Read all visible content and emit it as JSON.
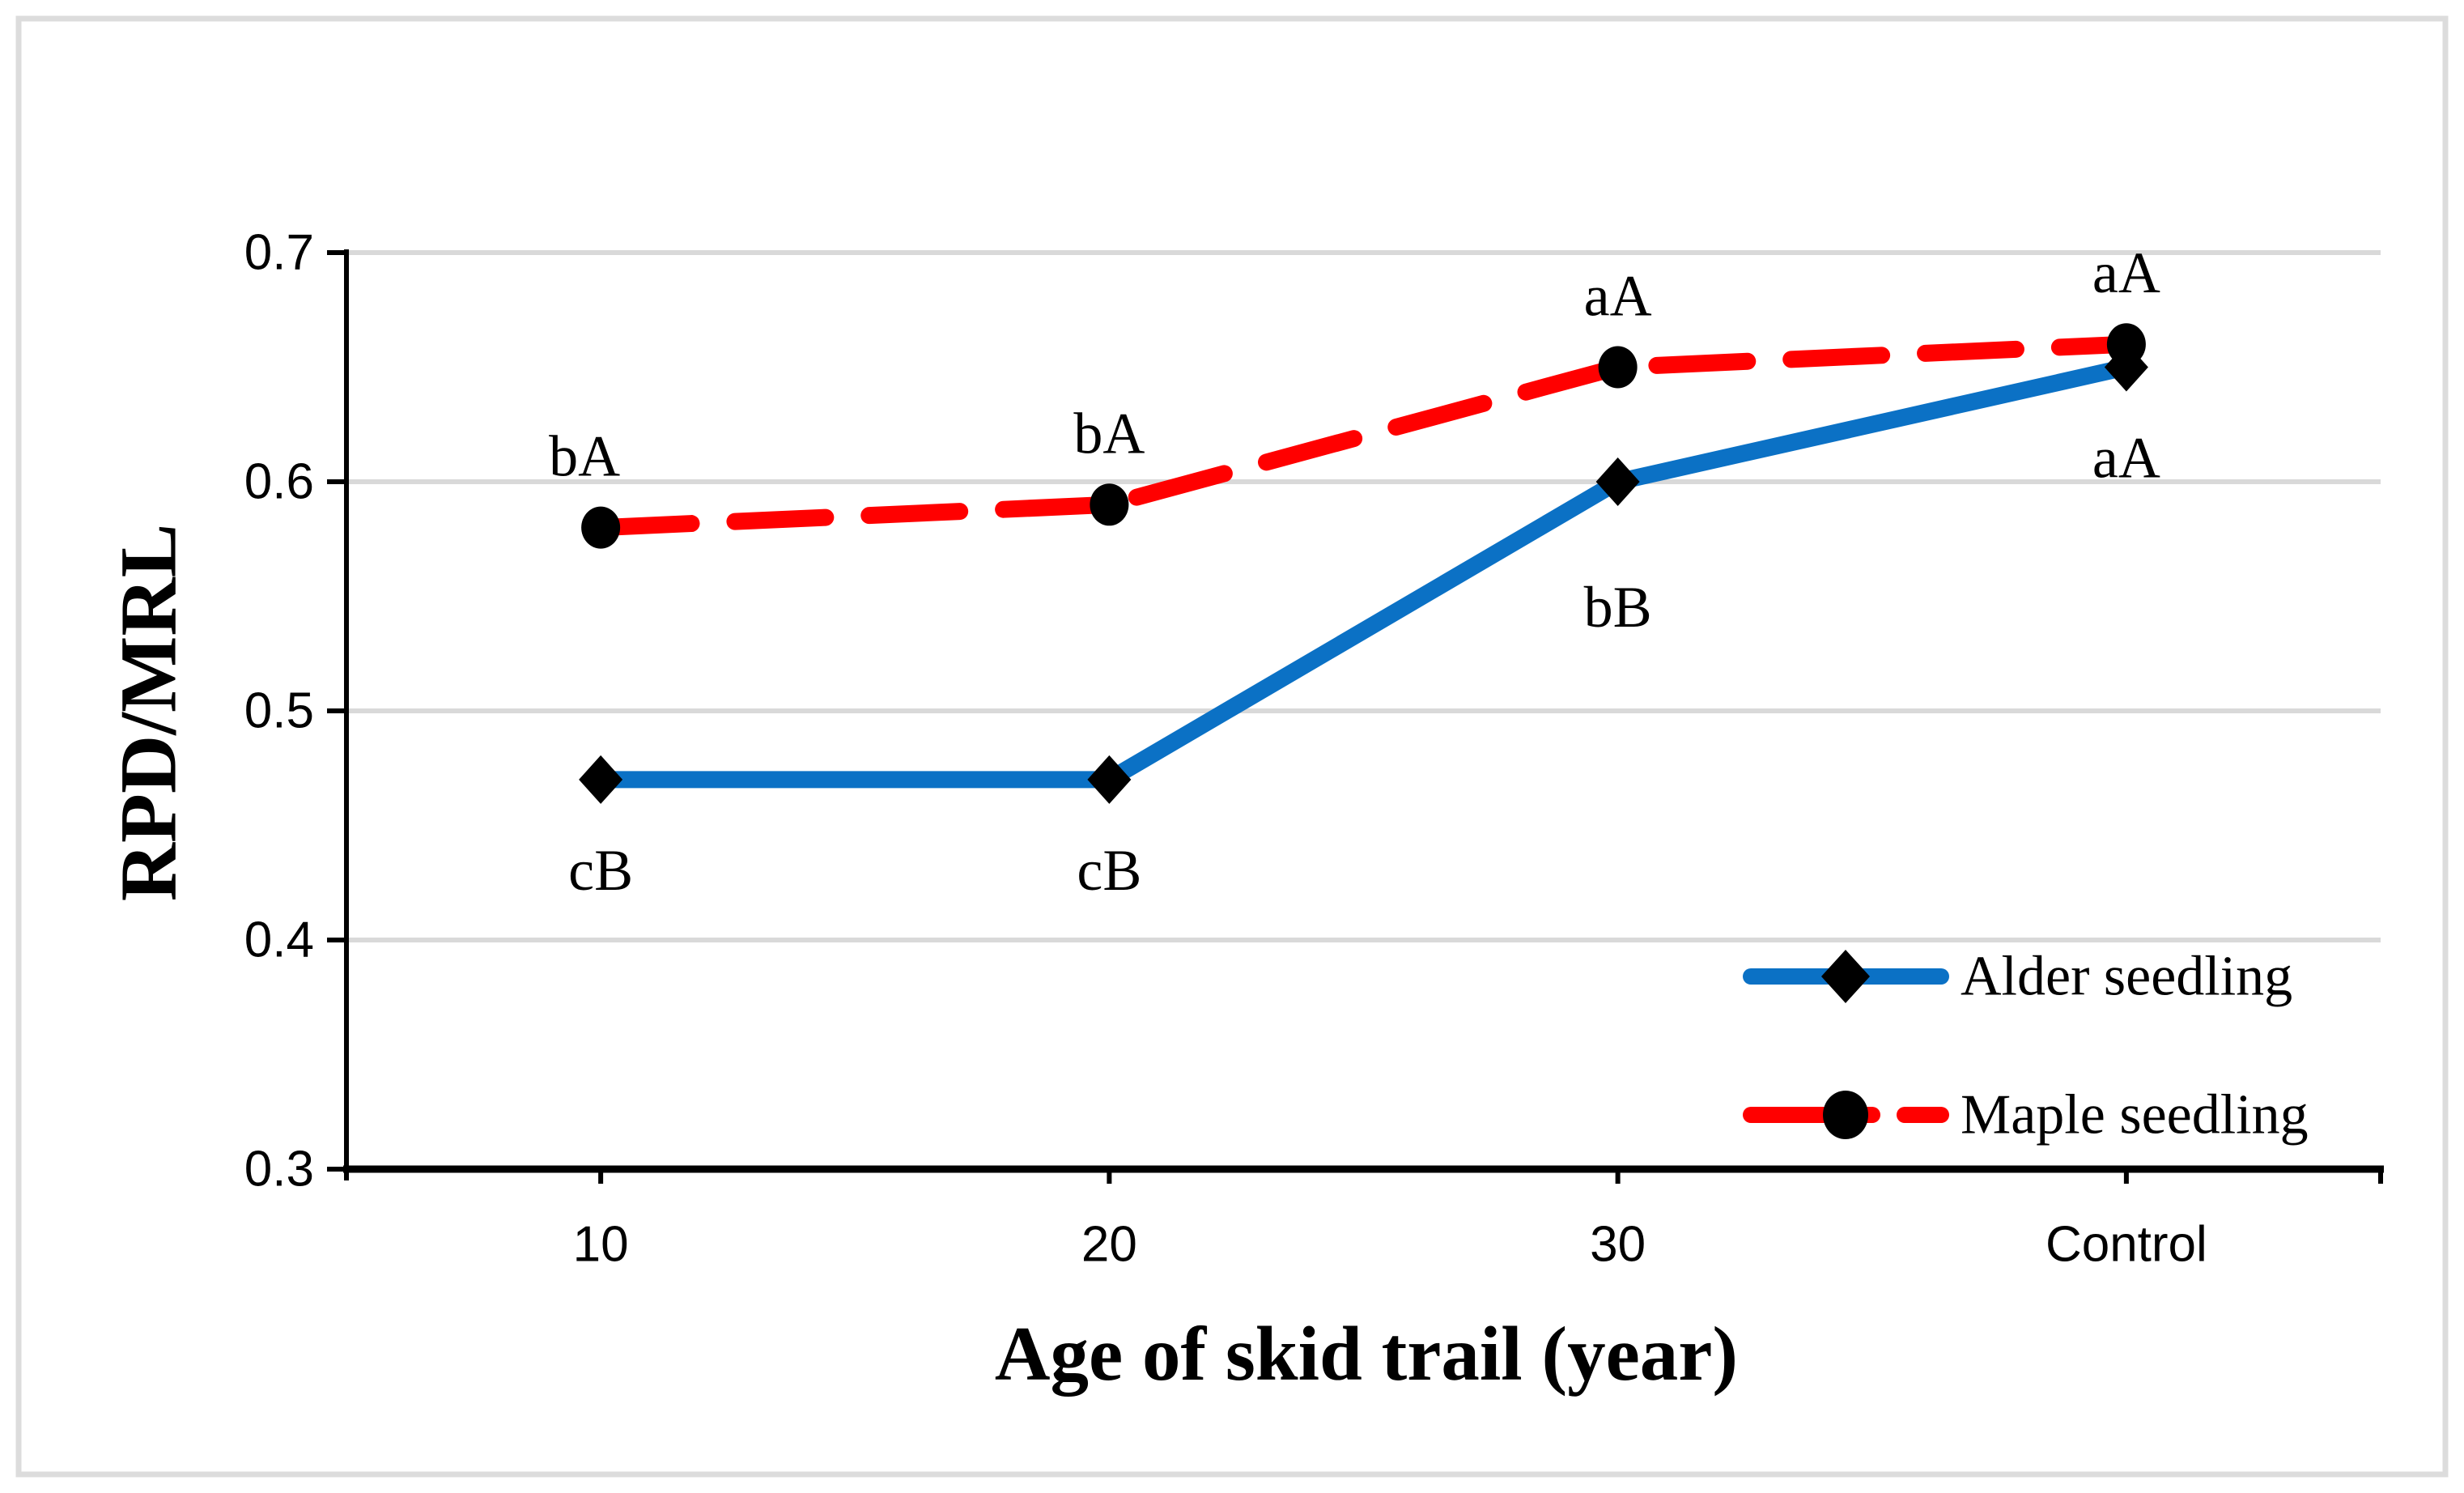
{
  "figure": {
    "background": "#FFFFFF",
    "border_color": "#DCDCDC"
  },
  "chart_data": {
    "type": "line",
    "title": "",
    "xlabel": "Age of skid trail (year)",
    "ylabel": "RPD/MRL",
    "categories": [
      "10",
      "20",
      "30",
      "Control"
    ],
    "y_axis": {
      "min": 0.3,
      "max": 0.7,
      "tick_step": 0.1,
      "tick_labels": [
        "0.3",
        "0.4",
        "0.5",
        "0.6",
        "0.7"
      ]
    },
    "grid": "horizontal-gridlines-at-0.4-0.5-0.6-0.7",
    "gridline_color": "#D9D9D9",
    "axis_color": "#000000",
    "series": [
      {
        "name": "Alder seedling",
        "color": "#0B71C5",
        "line_style": "solid",
        "marker": "diamond",
        "marker_color": "#000000",
        "values": [
          0.47,
          0.47,
          0.6,
          0.65
        ]
      },
      {
        "name": "Maple seedling",
        "color": "#FF0000",
        "line_style": "dashed",
        "marker": "circle",
        "marker_color": "#000000",
        "values": [
          0.58,
          0.59,
          0.65,
          0.66
        ]
      }
    ],
    "annotations": [
      {
        "series": "Maple seedling",
        "category": "10",
        "text": "bA",
        "placement": "above"
      },
      {
        "series": "Maple seedling",
        "category": "20",
        "text": "bA",
        "placement": "above"
      },
      {
        "series": "Maple seedling",
        "category": "30",
        "text": "aA",
        "placement": "above"
      },
      {
        "series": "Maple seedling",
        "category": "Control",
        "text": "aA",
        "placement": "above"
      },
      {
        "series": "Alder seedling",
        "category": "10",
        "text": "cB",
        "placement": "below"
      },
      {
        "series": "Alder seedling",
        "category": "20",
        "text": "cB",
        "placement": "below"
      },
      {
        "series": "Alder seedling",
        "category": "30",
        "text": "bB",
        "placement": "below"
      },
      {
        "series": "Alder seedling",
        "category": "Control",
        "text": "aA",
        "placement": "below"
      }
    ],
    "legend": {
      "position": "bottom-right",
      "entries": [
        "Alder seedling",
        "Maple seedling"
      ]
    }
  }
}
